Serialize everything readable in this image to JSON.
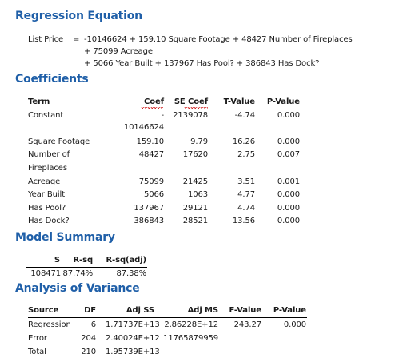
{
  "regression": {
    "title": "Regression Equation",
    "lhs": "List Price",
    "eq": "=",
    "line1": "-10146624 + 159.10 Square Footage + 48427 Number of Fireplaces",
    "line2": "+ 75099 Acreage",
    "line3": "+ 5066 Year Built + 137967 Has Pool? + 386843 Has Dock?"
  },
  "coefficients": {
    "title": "Coefficients",
    "headers": [
      "Term",
      "Coef",
      "SE Coef",
      "T-Value",
      "P-Value"
    ],
    "rows": [
      {
        "term": "Constant",
        "coef_a": "-",
        "coef_b": "10146624",
        "se": "2139078",
        "t": "-4.74",
        "p": "0.000"
      },
      {
        "term": "Square Footage",
        "coef": "159.10",
        "se": "9.79",
        "t": "16.26",
        "p": "0.000"
      },
      {
        "term": "Number of",
        "term2": "Fireplaces",
        "coef": "48427",
        "se": "17620",
        "t": "2.75",
        "p": "0.007"
      },
      {
        "term": "Acreage",
        "coef": "75099",
        "se": "21425",
        "t": "3.51",
        "p": "0.001"
      },
      {
        "term": "Year Built",
        "coef": "5066",
        "se": "1063",
        "t": "4.77",
        "p": "0.000"
      },
      {
        "term": "Has Pool?",
        "coef": "137967",
        "se": "29121",
        "t": "4.74",
        "p": "0.000"
      },
      {
        "term": "Has Dock?",
        "coef": "386843",
        "se": "28521",
        "t": "13.56",
        "p": "0.000"
      }
    ]
  },
  "model_summary": {
    "title": "Model Summary",
    "headers": [
      "S",
      "R-sq",
      "R-sq(adj)"
    ],
    "values": [
      "108471",
      "87.74%",
      "87.38%"
    ]
  },
  "anova": {
    "title": "Analysis of Variance",
    "headers": [
      "Source",
      "DF",
      "Adj SS",
      "Adj MS",
      "F-Value",
      "P-Value"
    ],
    "rows": [
      {
        "source": "Regression",
        "df": "6",
        "ss": "1.71737E+13",
        "ms": "2.86228E+12",
        "f": "243.27",
        "p": "0.000"
      },
      {
        "source": "Error",
        "df": "204",
        "ss": "2.40024E+12",
        "ms": "11765879959"
      },
      {
        "source": "Total",
        "df": "210",
        "ss": "1.95739E+13"
      }
    ]
  },
  "colors": {
    "heading": "#1f5fa8",
    "spellcheck": "#d02020"
  }
}
